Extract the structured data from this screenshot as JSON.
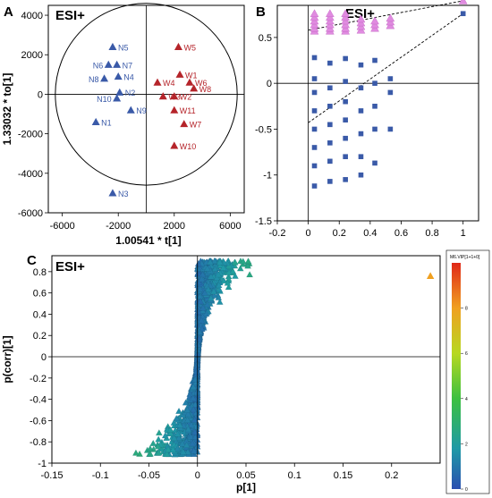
{
  "chart_data": [
    {
      "panel": "A",
      "type": "scatter",
      "annotation": "ESI+",
      "xlabel": "1.00541 * t[1]",
      "ylabel": "1.33032 * to[1]",
      "xlim": [
        -7000,
        7000
      ],
      "ylim": [
        -6000,
        4500
      ],
      "xticks": [
        -6000,
        -2000,
        2000,
        6000
      ],
      "yticks": [
        4000,
        2000,
        0,
        -2000,
        -4000,
        -6000
      ],
      "ellipse": {
        "rx": 6500,
        "ry": 4600
      },
      "colors": {
        "N": "#3a5aa8",
        "W": "#b5242a"
      },
      "series": [
        {
          "name": "N",
          "points": [
            {
              "label": "N5",
              "x": -2400,
              "y": 2400
            },
            {
              "label": "N6",
              "x": -2700,
              "y": 1500
            },
            {
              "label": "N7",
              "x": -2100,
              "y": 1500
            },
            {
              "label": "N8",
              "x": -3000,
              "y": 800
            },
            {
              "label": "N4",
              "x": -2000,
              "y": 900
            },
            {
              "label": "N2",
              "x": -1900,
              "y": 100
            },
            {
              "label": "N10",
              "x": -2100,
              "y": -200
            },
            {
              "label": "N9",
              "x": -1100,
              "y": -800
            },
            {
              "label": "N1",
              "x": -3600,
              "y": -1400
            },
            {
              "label": "N3",
              "x": -2400,
              "y": -5000
            }
          ]
        },
        {
          "name": "W",
          "points": [
            {
              "label": "W5",
              "x": 2300,
              "y": 2400
            },
            {
              "label": "W1",
              "x": 2400,
              "y": 1000
            },
            {
              "label": "W4",
              "x": 800,
              "y": 600
            },
            {
              "label": "W6",
              "x": 3100,
              "y": 600
            },
            {
              "label": "W8",
              "x": 3400,
              "y": 300
            },
            {
              "label": "W3",
              "x": 1200,
              "y": -100
            },
            {
              "label": "W2",
              "x": 2000,
              "y": -100
            },
            {
              "label": "W11",
              "x": 2000,
              "y": -800
            },
            {
              "label": "W7",
              "x": 2700,
              "y": -1500
            },
            {
              "label": "W10",
              "x": 2000,
              "y": -2600
            }
          ]
        }
      ]
    },
    {
      "panel": "B",
      "type": "scatter",
      "annotation": "ESI+",
      "xlim": [
        -0.2,
        1.1
      ],
      "ylim": [
        -1.5,
        0.85
      ],
      "xticks": [
        -0.2,
        0,
        0.2,
        0.4,
        0.6,
        0.8,
        1
      ],
      "yticks": [
        0.5,
        0,
        -0.5,
        -1,
        -1.5
      ],
      "colors": {
        "R2": "#e08be0",
        "Q2": "#3a5aa8"
      },
      "series": [
        {
          "name": "R2",
          "columns": [
            {
              "x": 0.04,
              "y": [
                0.57,
                0.6,
                0.64,
                0.68,
                0.72,
                0.76
              ]
            },
            {
              "x": 0.14,
              "y": [
                0.57,
                0.6,
                0.64,
                0.68,
                0.72,
                0.76
              ]
            },
            {
              "x": 0.24,
              "y": [
                0.57,
                0.6,
                0.64,
                0.68,
                0.72,
                0.76
              ]
            },
            {
              "x": 0.34,
              "y": [
                0.58,
                0.62,
                0.66,
                0.7
              ]
            },
            {
              "x": 0.43,
              "y": [
                0.6,
                0.64,
                0.68
              ]
            },
            {
              "x": 0.53,
              "y": [
                0.63,
                0.67,
                0.71
              ]
            },
            {
              "x": 1.0,
              "y": [
                0.9
              ]
            }
          ]
        },
        {
          "name": "Q2",
          "columns": [
            {
              "x": 0.04,
              "y": [
                0.28,
                0.05,
                -0.1,
                -0.3,
                -0.5,
                -0.7,
                -0.9,
                -1.12
              ]
            },
            {
              "x": 0.14,
              "y": [
                0.22,
                -0.05,
                -0.25,
                -0.45,
                -0.65,
                -0.85,
                -1.07
              ]
            },
            {
              "x": 0.24,
              "y": [
                0.27,
                0.02,
                -0.2,
                -0.4,
                -0.6,
                -0.8,
                -1.05
              ]
            },
            {
              "x": 0.34,
              "y": [
                0.2,
                -0.05,
                -0.3,
                -0.55,
                -0.8,
                -1.0
              ]
            },
            {
              "x": 0.43,
              "y": [
                0.25,
                0.0,
                -0.25,
                -0.5,
                -0.87
              ]
            },
            {
              "x": 0.53,
              "y": [
                0.05,
                -0.1,
                -0.5
              ]
            },
            {
              "x": 1.0,
              "y": [
                0.76
              ]
            }
          ]
        }
      ],
      "regression": [
        {
          "name": "R2",
          "x": [
            0,
            1.0
          ],
          "y": [
            0.58,
            0.9
          ]
        },
        {
          "name": "Q2",
          "x": [
            0,
            1.0
          ],
          "y": [
            -0.43,
            0.76
          ]
        }
      ]
    },
    {
      "panel": "C",
      "type": "scatter",
      "annotation": "ESI+",
      "xlabel": "p[1]",
      "ylabel": "p(corr)[1]",
      "xlim": [
        -0.15,
        0.25
      ],
      "ylim": [
        -1.0,
        0.95
      ],
      "xticks": [
        -0.15,
        -0.1,
        -0.05,
        0,
        0.05,
        0.1,
        0.15,
        0.2
      ],
      "yticks": [
        0.8,
        0.6,
        0.4,
        0.2,
        0,
        -0.2,
        -0.4,
        -0.6,
        -0.8,
        -1
      ],
      "outlier": {
        "x": 0.24,
        "y": 0.76,
        "vip": 8.0
      },
      "colorbar": {
        "title": "M6.VIP[1+1+0]",
        "ticks": [
          0,
          2,
          4,
          6,
          8
        ],
        "range": [
          0,
          10
        ]
      }
    }
  ]
}
